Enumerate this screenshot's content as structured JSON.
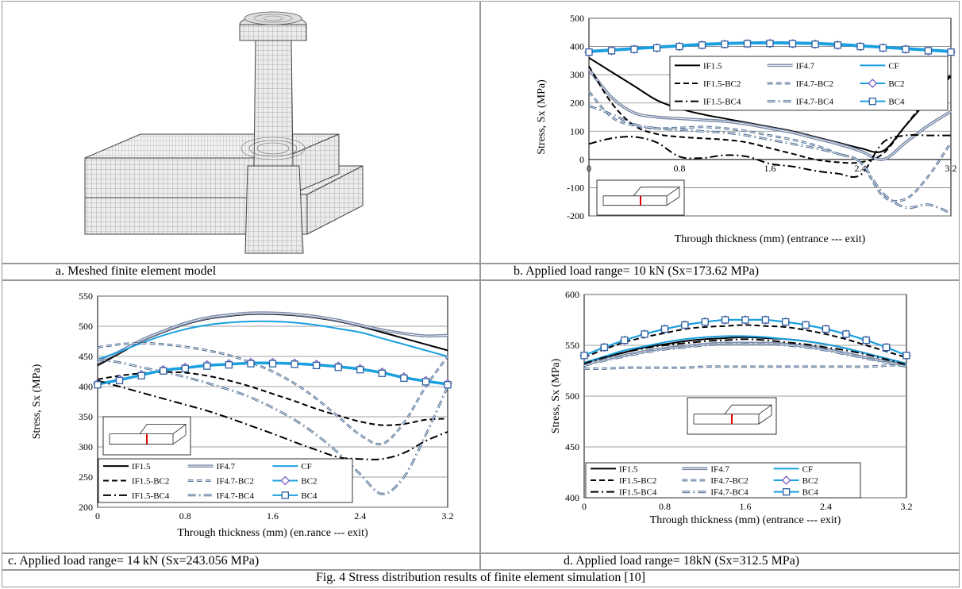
{
  "captions": {
    "a": "a.     Meshed finite element model",
    "b": "b.   Applied load range= 10 kN (Sx=173.62 MPa)",
    "c": "c. Applied load range= 14 kN (Sx=243.056 MPa)",
    "d": "d. Applied load range= 18kN (Sx=312.5 MPa)"
  },
  "figure_caption": "Fig. 4 Stress distribution results of finite element simulation [10]",
  "colors": {
    "cyan": "#1aa0e0",
    "gray_blue": "#7a8aa8",
    "steel": "#4a6a90",
    "marker": "#3060a0",
    "diamond": "#8060c0"
  },
  "legend_labels": [
    "IF1.5",
    "IF4.7",
    "CF",
    "IF1.5-BC2",
    "IF4.7-BC2",
    "BC2",
    "IF1.5-BC4",
    "IF4.7-BC4",
    "BC4"
  ],
  "chart_data": [
    {
      "panel": "b",
      "type": "line",
      "xlabel": "Through thickness (mm) (entrance --- exit)",
      "ylabel": "Stress, Sx (MPa)",
      "xlim": [
        0,
        3.2
      ],
      "ylim": [
        -200,
        500
      ],
      "xticks": [
        "0",
        "0.8",
        "1.6",
        "2.4",
        "3.2"
      ],
      "yticks": [
        "-200",
        "-100",
        "0",
        "100",
        "200",
        "300",
        "400",
        "500"
      ],
      "x": [
        0,
        0.2,
        0.4,
        0.6,
        0.8,
        1.0,
        1.2,
        1.4,
        1.6,
        1.8,
        2.0,
        2.2,
        2.4,
        2.6,
        2.8,
        3.0,
        3.2
      ],
      "series": [
        {
          "name": "IF1.5",
          "values": [
            360,
            310,
            260,
            210,
            180,
            160,
            145,
            130,
            115,
            100,
            80,
            60,
            40,
            30,
            120,
            210,
            295
          ]
        },
        {
          "name": "IF4.7",
          "values": [
            320,
            220,
            165,
            150,
            145,
            140,
            135,
            125,
            110,
            95,
            75,
            55,
            30,
            0,
            60,
            120,
            170
          ]
        },
        {
          "name": "CF",
          "values": [
            385,
            390,
            395,
            400,
            405,
            410,
            413,
            415,
            416,
            415,
            413,
            410,
            405,
            400,
            395,
            390,
            385
          ]
        },
        {
          "name": "IF1.5-BC2",
          "values": [
            330,
            200,
            120,
            90,
            80,
            75,
            70,
            60,
            40,
            20,
            0,
            -10,
            -10,
            20,
            120,
            220,
            300
          ]
        },
        {
          "name": "IF4.7-BC2",
          "values": [
            240,
            150,
            120,
            110,
            112,
            115,
            110,
            100,
            85,
            70,
            50,
            20,
            -10,
            -130,
            -140,
            -60,
            60
          ]
        },
        {
          "name": "BC2",
          "values": [
            380,
            385,
            390,
            395,
            400,
            405,
            408,
            410,
            411,
            410,
            408,
            405,
            400,
            395,
            390,
            385,
            380
          ]
        },
        {
          "name": "IF1.5-BC4",
          "values": [
            55,
            75,
            80,
            60,
            10,
            5,
            15,
            10,
            -15,
            -25,
            -40,
            -50,
            -55,
            60,
            85,
            85,
            85
          ]
        },
        {
          "name": "IF4.7-BC4",
          "values": [
            190,
            160,
            125,
            110,
            105,
            100,
            95,
            85,
            70,
            55,
            40,
            20,
            -10,
            -120,
            -170,
            -160,
            -190
          ]
        },
        {
          "name": "BC4",
          "values": [
            380,
            385,
            390,
            395,
            400,
            405,
            408,
            410,
            411,
            410,
            408,
            405,
            400,
            395,
            390,
            385,
            380
          ]
        }
      ]
    },
    {
      "panel": "c",
      "type": "line",
      "xlabel": "Through thickness (mm) (en.rance --- exit)",
      "ylabel": "Stress, Sx (MPa)",
      "xlim": [
        0,
        3.2
      ],
      "ylim": [
        200,
        550
      ],
      "xticks": [
        "0",
        "0.8",
        "1.6",
        "2.4",
        "3.2"
      ],
      "yticks": [
        "200",
        "250",
        "300",
        "350",
        "400",
        "450",
        "500",
        "550"
      ],
      "x": [
        0,
        0.2,
        0.4,
        0.6,
        0.8,
        1.0,
        1.2,
        1.4,
        1.6,
        1.8,
        2.0,
        2.2,
        2.4,
        2.6,
        2.8,
        3.0,
        3.2
      ],
      "series": [
        {
          "name": "IF1.5",
          "values": [
            435,
            455,
            475,
            490,
            503,
            512,
            517,
            520,
            520,
            518,
            514,
            508,
            500,
            490,
            480,
            470,
            460
          ]
        },
        {
          "name": "IF4.7",
          "values": [
            440,
            458,
            477,
            492,
            505,
            514,
            519,
            522,
            522,
            520,
            516,
            510,
            502,
            494,
            488,
            484,
            485
          ]
        },
        {
          "name": "CF",
          "values": [
            445,
            458,
            472,
            485,
            495,
            502,
            506,
            508,
            508,
            506,
            502,
            496,
            490,
            480,
            470,
            460,
            450
          ]
        },
        {
          "name": "IF1.5-BC2",
          "values": [
            412,
            418,
            422,
            424,
            423,
            418,
            410,
            400,
            388,
            376,
            363,
            352,
            342,
            336,
            338,
            345,
            347
          ]
        },
        {
          "name": "IF4.7-BC2",
          "values": [
            465,
            470,
            472,
            470,
            466,
            460,
            452,
            440,
            425,
            405,
            380,
            350,
            320,
            305,
            340,
            400,
            450
          ]
        },
        {
          "name": "BC2",
          "values": [
            405,
            412,
            420,
            428,
            432,
            436,
            438,
            440,
            440,
            439,
            437,
            434,
            430,
            424,
            416,
            410,
            405
          ]
        },
        {
          "name": "IF1.5-BC4",
          "values": [
            410,
            400,
            390,
            380,
            370,
            360,
            348,
            335,
            322,
            308,
            295,
            283,
            280,
            280,
            290,
            310,
            325
          ]
        },
        {
          "name": "IF4.7-BC4",
          "values": [
            445,
            440,
            432,
            424,
            416,
            406,
            395,
            382,
            365,
            345,
            320,
            290,
            255,
            222,
            250,
            320,
            400
          ]
        },
        {
          "name": "BC4",
          "values": [
            403,
            410,
            418,
            426,
            430,
            434,
            436,
            438,
            438,
            437,
            435,
            432,
            428,
            422,
            414,
            408,
            403
          ]
        }
      ]
    },
    {
      "panel": "d",
      "type": "line",
      "xlabel": "Through thickness (mm) (entrance --- exit)",
      "ylabel": "Stress, Sx (MPa)",
      "xlim": [
        0,
        3.2
      ],
      "ylim": [
        400,
        600
      ],
      "xticks": [
        "0",
        "0.8",
        "1.6",
        "2.4",
        "3.2"
      ],
      "yticks": [
        "400",
        "450",
        "500",
        "550",
        "600"
      ],
      "x": [
        0,
        0.2,
        0.4,
        0.6,
        0.8,
        1.0,
        1.2,
        1.4,
        1.6,
        1.8,
        2.0,
        2.2,
        2.4,
        2.6,
        2.8,
        3.0,
        3.2
      ],
      "series": [
        {
          "name": "IF1.5",
          "values": [
            532,
            538,
            543,
            548,
            551,
            554,
            556,
            557,
            558,
            557,
            556,
            554,
            551,
            547,
            542,
            537,
            532
          ]
        },
        {
          "name": "IF4.7",
          "values": [
            531,
            536,
            540,
            544,
            547,
            549,
            551,
            552,
            552,
            552,
            551,
            549,
            546,
            542,
            538,
            534,
            530
          ]
        },
        {
          "name": "CF",
          "values": [
            533,
            539,
            545,
            549,
            553,
            556,
            558,
            559,
            559,
            558,
            556,
            554,
            551,
            547,
            542,
            537,
            532
          ]
        },
        {
          "name": "IF1.5-BC2",
          "values": [
            538,
            546,
            553,
            558,
            562,
            566,
            568,
            569,
            570,
            569,
            568,
            565,
            561,
            556,
            550,
            544,
            538
          ]
        },
        {
          "name": "IF4.7-BC2",
          "values": [
            527,
            527,
            528,
            528,
            528,
            528,
            529,
            529,
            529,
            529,
            529,
            529,
            529,
            529,
            529,
            530,
            531
          ]
        },
        {
          "name": "BC2",
          "values": [
            540,
            548,
            555,
            561,
            566,
            570,
            573,
            575,
            575,
            575,
            573,
            570,
            566,
            561,
            555,
            548,
            540
          ]
        },
        {
          "name": "IF1.5-BC4",
          "values": [
            532,
            538,
            543,
            547,
            550,
            552,
            554,
            555,
            556,
            555,
            553,
            551,
            548,
            545,
            541,
            536,
            531
          ]
        },
        {
          "name": "IF4.7-BC4",
          "values": [
            530,
            535,
            539,
            543,
            546,
            548,
            550,
            551,
            551,
            551,
            550,
            548,
            545,
            541,
            537,
            533,
            529
          ]
        },
        {
          "name": "BC4",
          "values": [
            540,
            548,
            555,
            561,
            566,
            570,
            573,
            575,
            575,
            575,
            573,
            570,
            566,
            561,
            555,
            548,
            540
          ]
        }
      ]
    }
  ]
}
